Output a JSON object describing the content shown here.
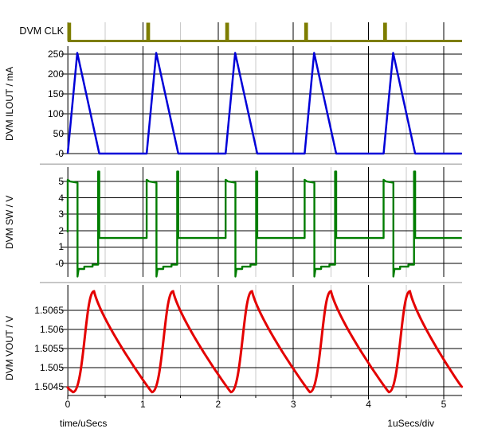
{
  "footer": {
    "time_axis_label": "time/uSecs",
    "per_div_label": "1uSecs/div"
  },
  "grid": {
    "major_color": "#000000",
    "minor_color": "#c9c9c9",
    "separator_color": "#b5b5b5",
    "axis_color": "#4a4a4a",
    "background": "#ffffff"
  },
  "xaxis": {
    "tick_labels": [
      "0",
      "1",
      "2",
      "3",
      "4",
      "5"
    ],
    "tick_values": [
      0,
      1,
      2,
      3,
      4,
      5
    ],
    "minor_tick_values": [
      0.5,
      1.5,
      2.5,
      3.5,
      4.5
    ],
    "range_us": [
      0,
      5.24
    ]
  },
  "chart_data": [
    {
      "id": "clk",
      "type": "digital",
      "title": "DVM CLK",
      "color": "#7d7d00",
      "pulse_times_us": [
        0,
        1.05,
        2.1,
        3.15,
        4.2
      ],
      "pulse_width_us": 0.05,
      "baseline_level": "low"
    },
    {
      "id": "ilout",
      "type": "line",
      "ylabel": "DVM ILOUT / mA",
      "color": "#0000d8",
      "ylim": [
        0,
        250
      ],
      "ytick_labels": [
        "250",
        "200",
        "150",
        "100",
        "50",
        "-0"
      ],
      "ytick_values": [
        250,
        200,
        150,
        100,
        50,
        0
      ],
      "points": [
        [
          0,
          0
        ],
        [
          0.127,
          253
        ],
        [
          0.42,
          0
        ],
        [
          1.05,
          0
        ],
        [
          1.177,
          253
        ],
        [
          1.47,
          0
        ],
        [
          2.1,
          0
        ],
        [
          2.227,
          253
        ],
        [
          2.52,
          0
        ],
        [
          3.15,
          0
        ],
        [
          3.277,
          253
        ],
        [
          3.57,
          0
        ],
        [
          4.2,
          0
        ],
        [
          4.327,
          253
        ],
        [
          4.62,
          0
        ],
        [
          5.24,
          0
        ]
      ]
    },
    {
      "id": "sw",
      "type": "line",
      "ylabel": "DVM SW / V",
      "color": "#007d00",
      "ylim": [
        -0.8,
        5.6
      ],
      "ytick_labels": [
        "5",
        "4",
        "3",
        "2",
        "1",
        "-0"
      ],
      "ytick_values": [
        5,
        4,
        3,
        2,
        1,
        0
      ],
      "points": [
        [
          0,
          1.9
        ],
        [
          0,
          5.1
        ],
        [
          0.03,
          5.0
        ],
        [
          0.13,
          4.92
        ],
        [
          0.13,
          -0.8
        ],
        [
          0.145,
          -0.34
        ],
        [
          0.22,
          -0.34
        ],
        [
          0.22,
          -0.2
        ],
        [
          0.33,
          -0.2
        ],
        [
          0.33,
          -0.08
        ],
        [
          0.405,
          -0.08
        ],
        [
          0.405,
          5.6
        ],
        [
          0.42,
          5.6
        ],
        [
          0.42,
          1.55
        ],
        [
          1.05,
          1.55
        ],
        [
          1.05,
          5.1
        ],
        [
          1.08,
          5.0
        ],
        [
          1.18,
          4.92
        ],
        [
          1.18,
          -0.8
        ],
        [
          1.195,
          -0.34
        ],
        [
          1.27,
          -0.34
        ],
        [
          1.27,
          -0.2
        ],
        [
          1.38,
          -0.2
        ],
        [
          1.38,
          -0.08
        ],
        [
          1.455,
          -0.08
        ],
        [
          1.455,
          5.6
        ],
        [
          1.47,
          5.6
        ],
        [
          1.47,
          1.55
        ],
        [
          2.1,
          1.55
        ],
        [
          2.1,
          5.1
        ],
        [
          2.13,
          5.0
        ],
        [
          2.23,
          4.92
        ],
        [
          2.23,
          -0.8
        ],
        [
          2.245,
          -0.34
        ],
        [
          2.32,
          -0.34
        ],
        [
          2.32,
          -0.2
        ],
        [
          2.43,
          -0.2
        ],
        [
          2.43,
          -0.08
        ],
        [
          2.505,
          -0.08
        ],
        [
          2.505,
          5.6
        ],
        [
          2.52,
          5.6
        ],
        [
          2.52,
          1.55
        ],
        [
          3.15,
          1.55
        ],
        [
          3.15,
          5.1
        ],
        [
          3.18,
          5.0
        ],
        [
          3.28,
          4.92
        ],
        [
          3.28,
          -0.8
        ],
        [
          3.295,
          -0.34
        ],
        [
          3.37,
          -0.34
        ],
        [
          3.37,
          -0.2
        ],
        [
          3.48,
          -0.2
        ],
        [
          3.48,
          -0.08
        ],
        [
          3.555,
          -0.08
        ],
        [
          3.555,
          5.6
        ],
        [
          3.57,
          5.6
        ],
        [
          3.57,
          1.55
        ],
        [
          4.2,
          1.55
        ],
        [
          4.2,
          5.1
        ],
        [
          4.23,
          5.0
        ],
        [
          4.33,
          4.92
        ],
        [
          4.33,
          -0.8
        ],
        [
          4.345,
          -0.34
        ],
        [
          4.42,
          -0.34
        ],
        [
          4.42,
          -0.2
        ],
        [
          4.53,
          -0.2
        ],
        [
          4.53,
          -0.08
        ],
        [
          4.605,
          -0.08
        ],
        [
          4.605,
          5.6
        ],
        [
          4.62,
          5.6
        ],
        [
          4.62,
          1.55
        ],
        [
          5.24,
          1.55
        ]
      ]
    },
    {
      "id": "vout",
      "type": "smooth-line",
      "ylabel": "DVM VOUT / V",
      "color": "#e40000",
      "ylim": [
        1.5043,
        1.507
      ],
      "ytick_labels": [
        "1.5065",
        "1.506",
        "1.5055",
        "1.505",
        "1.5045"
      ],
      "ytick_values": [
        1.5065,
        1.506,
        1.5055,
        1.505,
        1.5045
      ],
      "anchors": [
        [
          0,
          1.50448
        ],
        [
          0.07,
          1.50436
        ],
        [
          0.35,
          1.507
        ],
        [
          1.12,
          1.50436
        ],
        [
          1.4,
          1.507
        ],
        [
          2.17,
          1.50436
        ],
        [
          2.45,
          1.507
        ],
        [
          3.22,
          1.50436
        ],
        [
          3.5,
          1.507
        ],
        [
          4.27,
          1.50436
        ],
        [
          4.55,
          1.507
        ],
        [
          5.24,
          1.5045
        ]
      ]
    }
  ]
}
